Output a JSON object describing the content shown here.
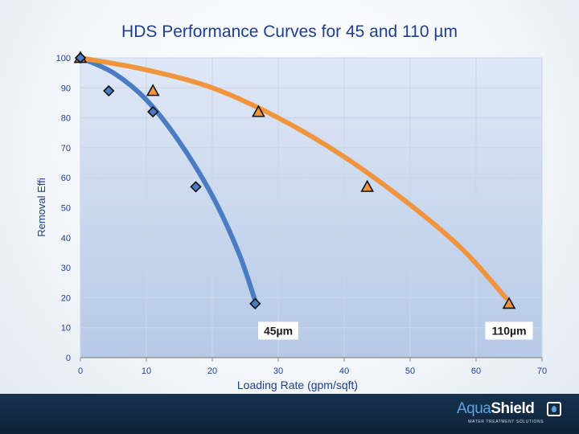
{
  "chart_data": {
    "type": "scatter",
    "title": "HDS Performance Curves for 45 and 110 µm",
    "xlabel": "Loading Rate (gpm/sqft)",
    "ylabel": "Removal Effi",
    "xlim": [
      0,
      70
    ],
    "ylim": [
      0,
      100
    ],
    "xticks": [
      0,
      10,
      20,
      30,
      40,
      50,
      60,
      70
    ],
    "yticks": [
      0,
      10,
      20,
      30,
      40,
      50,
      60,
      70,
      80,
      90,
      100
    ],
    "grid": true,
    "series": [
      {
        "name": "45µm",
        "color": "#4a7cc4",
        "marker": "diamond",
        "points": [
          [
            0,
            100
          ],
          [
            4.3,
            89
          ],
          [
            11,
            82
          ],
          [
            17.5,
            57
          ],
          [
            26.5,
            18
          ]
        ],
        "curve": [
          [
            0,
            100
          ],
          [
            5,
            95
          ],
          [
            10,
            86
          ],
          [
            15,
            72
          ],
          [
            20,
            54
          ],
          [
            24,
            35
          ],
          [
            26.5,
            19
          ]
        ]
      },
      {
        "name": "110µm",
        "color": "#f0943e",
        "marker": "triangle",
        "points": [
          [
            0,
            100
          ],
          [
            11,
            89
          ],
          [
            27,
            82
          ],
          [
            43.5,
            57
          ],
          [
            65,
            18
          ]
        ],
        "curve": [
          [
            0,
            100
          ],
          [
            10,
            96
          ],
          [
            20,
            90
          ],
          [
            30,
            80
          ],
          [
            40,
            67
          ],
          [
            50,
            51
          ],
          [
            58,
            36
          ],
          [
            64.5,
            20
          ]
        ]
      }
    ],
    "annotations": [
      {
        "text": "45µm",
        "series": 0,
        "x": 30,
        "y": 9
      },
      {
        "text": "110µm",
        "series": 1,
        "x": 65,
        "y": 9
      }
    ]
  },
  "logo": {
    "part1": "Aqua",
    "part2": "Shield",
    "tagline": "WATER TREATMENT SOLUTIONS"
  }
}
